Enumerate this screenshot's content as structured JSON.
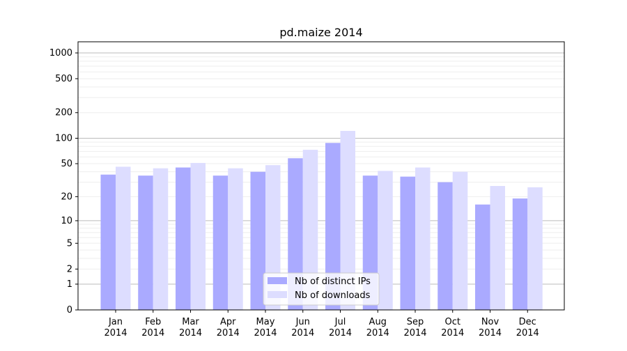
{
  "chart_data": {
    "type": "bar",
    "title": "pd.maize 2014",
    "xlabel": "",
    "ylabel": "",
    "yscale": "log1p",
    "ylim": [
      0,
      1300
    ],
    "yticks": [
      0,
      1,
      2,
      5,
      10,
      20,
      50,
      100,
      200,
      500,
      1000
    ],
    "grid": true,
    "legend_position": "bottom-center",
    "categories": [
      "Jan\n2014",
      "Feb\n2014",
      "Mar\n2014",
      "Apr\n2014",
      "May\n2014",
      "Jun\n2014",
      "Jul\n2014",
      "Aug\n2014",
      "Sep\n2014",
      "Oct\n2014",
      "Nov\n2014",
      "Dec\n2014"
    ],
    "series": [
      {
        "name": "Nb of distinct IPs",
        "color": "#aaaaff",
        "values": [
          37,
          36,
          45,
          36,
          40,
          58,
          88,
          36,
          35,
          30,
          16,
          19
        ]
      },
      {
        "name": "Nb of downloads",
        "color": "#ddddff",
        "values": [
          46,
          44,
          51,
          44,
          48,
          73,
          122,
          41,
          45,
          40,
          27,
          26
        ]
      }
    ]
  }
}
